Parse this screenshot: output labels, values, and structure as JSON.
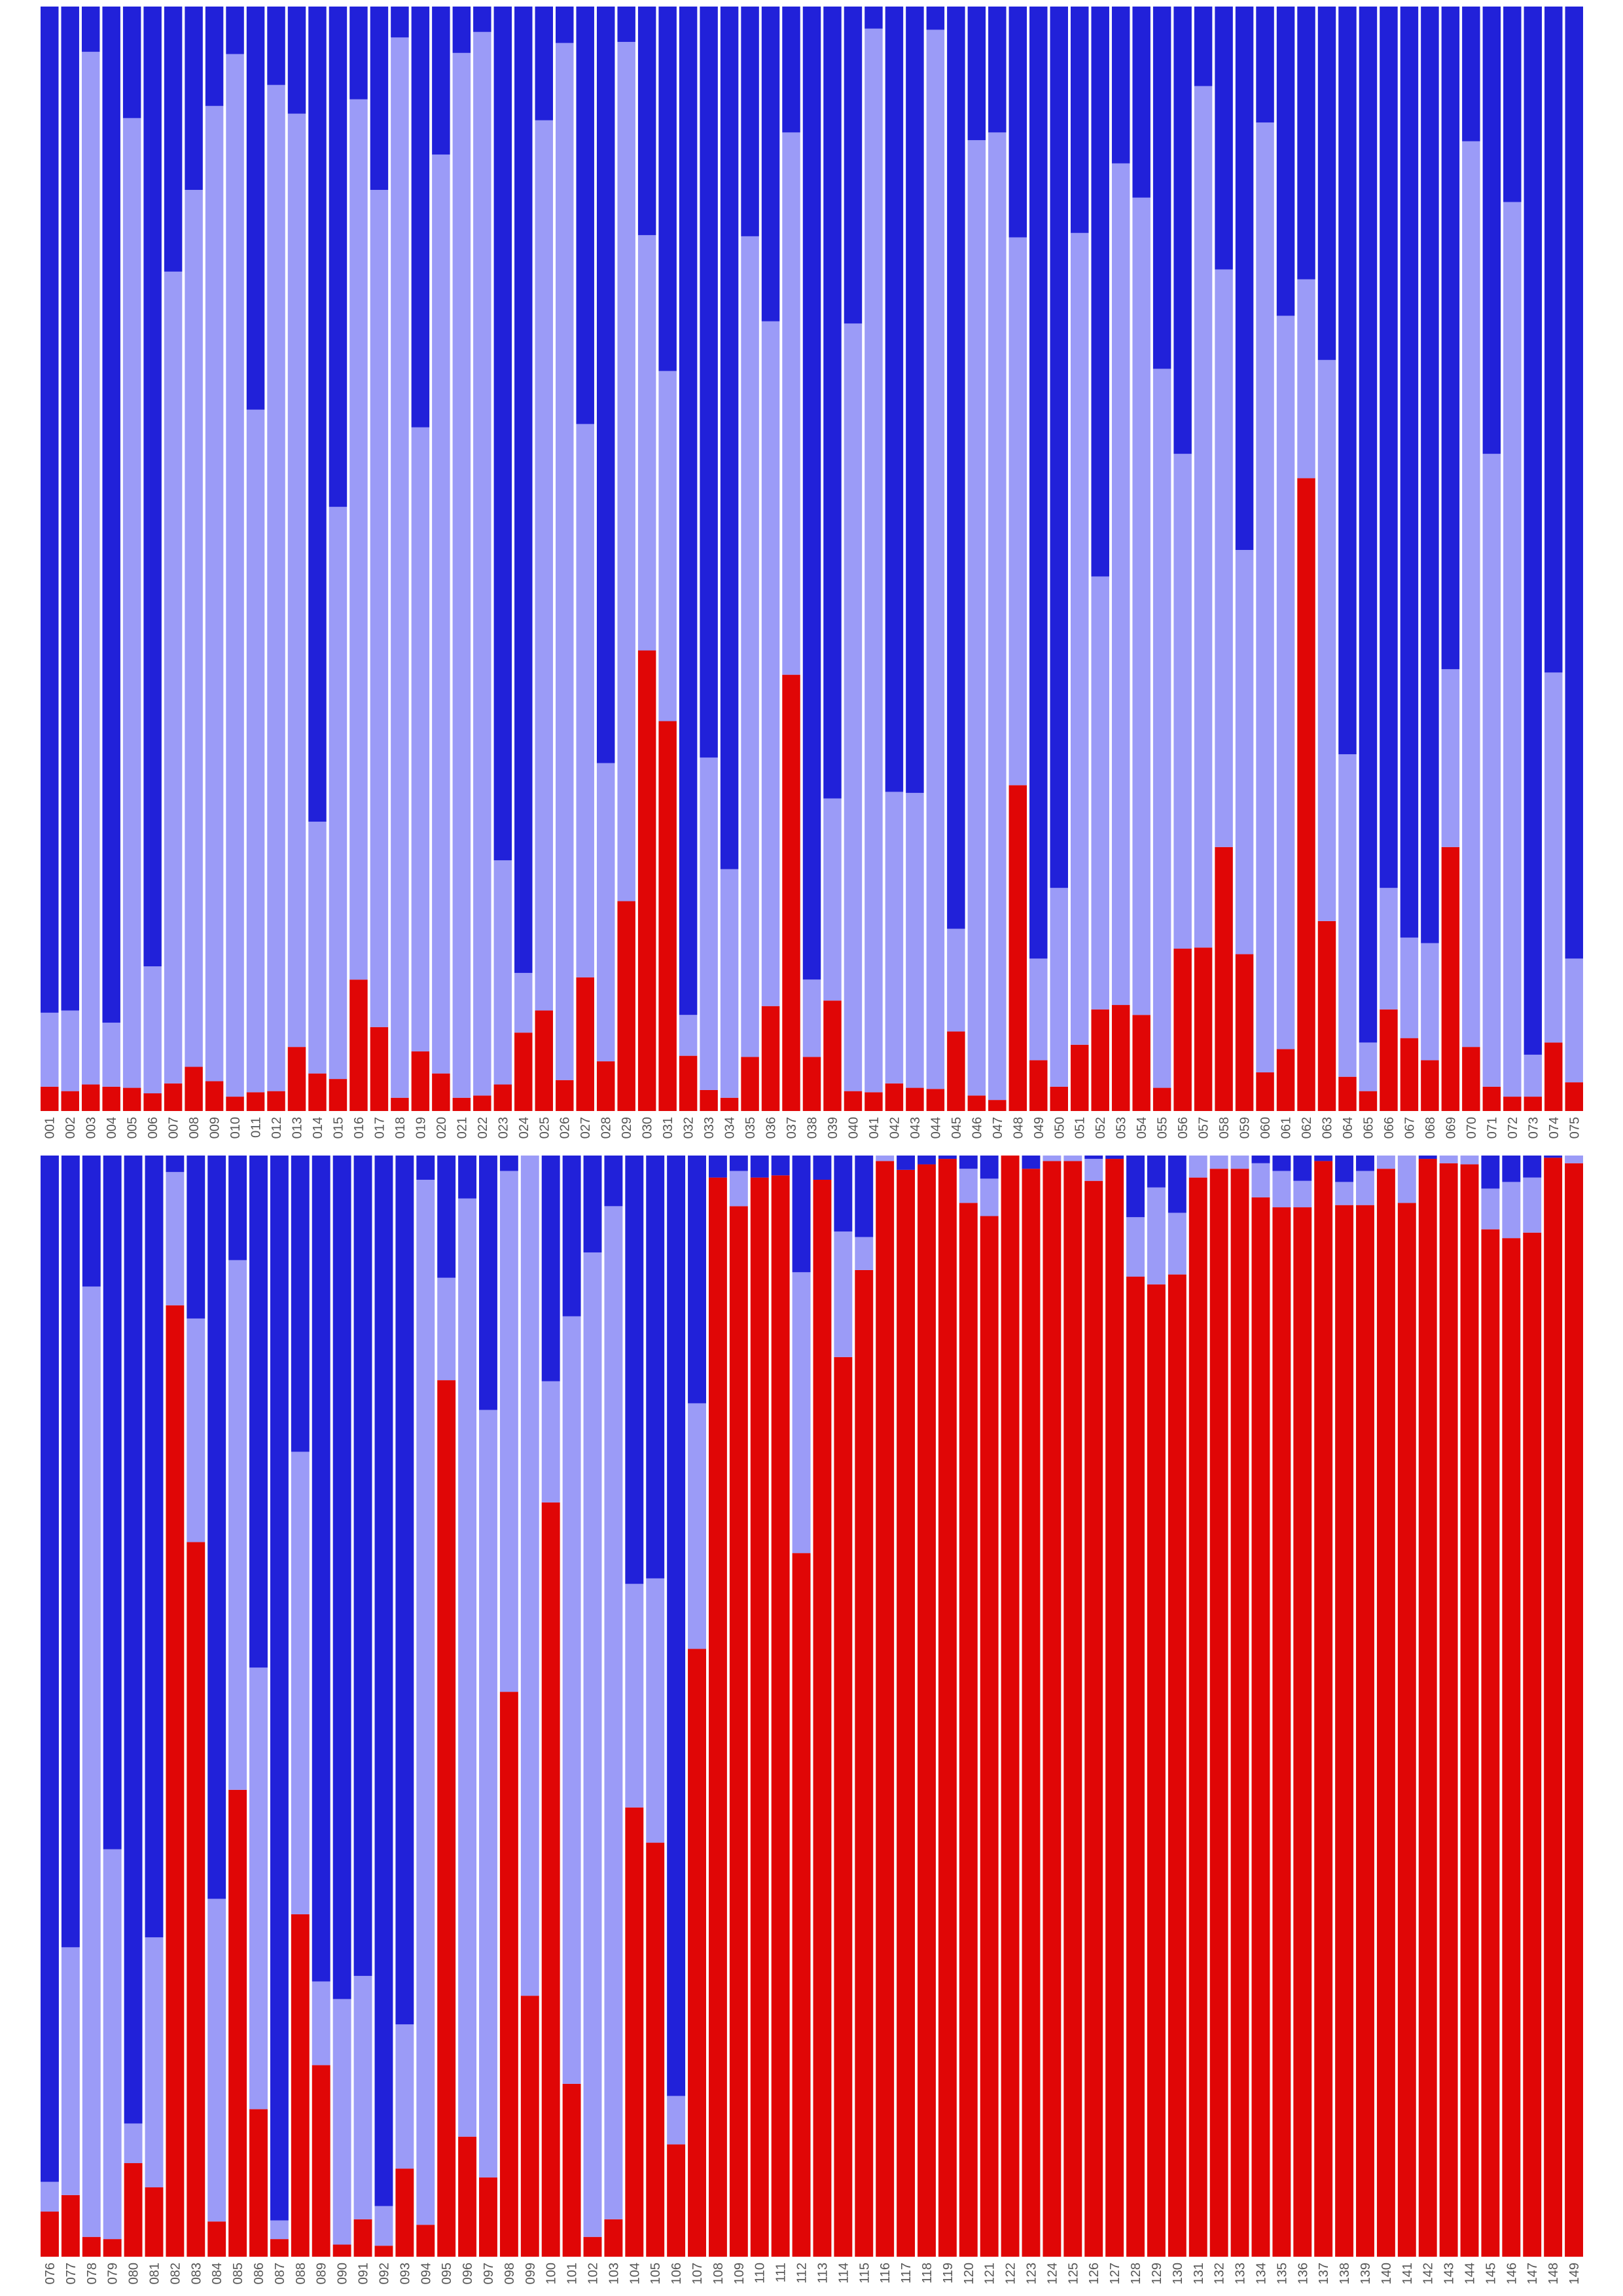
{
  "chart_data": [
    {
      "type": "bar",
      "stacked": true,
      "normalized": true,
      "ylim": [
        0,
        1
      ],
      "grid": false,
      "legend": "none",
      "series_colors": [
        "#e00606",
        "#9b9bf7",
        "#2121d9"
      ],
      "categories": [
        "001",
        "002",
        "003",
        "004",
        "005",
        "006",
        "007",
        "008",
        "009",
        "010",
        "011",
        "012",
        "013",
        "014",
        "015",
        "016",
        "017",
        "018",
        "019",
        "020",
        "021",
        "022",
        "023",
        "024",
        "025",
        "026",
        "027",
        "028",
        "029",
        "030",
        "031",
        "032",
        "033",
        "034",
        "035",
        "036",
        "037",
        "038",
        "039",
        "040",
        "041",
        "042",
        "043",
        "044",
        "045",
        "046",
        "047",
        "048",
        "049",
        "050",
        "051",
        "052",
        "053",
        "054",
        "055",
        "056",
        "057",
        "058",
        "059",
        "060",
        "061",
        "062",
        "063",
        "064",
        "065",
        "066",
        "067",
        "068",
        "069",
        "070",
        "071",
        "072",
        "073",
        "074",
        "075"
      ],
      "series": [
        {
          "values": [
            0.022,
            0.018,
            0.024,
            0.022,
            0.021,
            0.016,
            0.025,
            0.04,
            0.027,
            0.013,
            0.017,
            0.018,
            0.058,
            0.034,
            0.029,
            0.119,
            0.076,
            0.012,
            0.054,
            0.034,
            0.012,
            0.014,
            0.024,
            0.071,
            0.091,
            0.028,
            0.121,
            0.045,
            0.19,
            0.417,
            0.353,
            0.05,
            0.019,
            0.012,
            0.049,
            0.095,
            0.395,
            0.049,
            0.1,
            0.018,
            0.017,
            0.025,
            0.021,
            0.02,
            0.072,
            0.014,
            0.01,
            0.295,
            0.046,
            0.022,
            0.06,
            0.092,
            0.096,
            0.087,
            0.021,
            0.147,
            0.148,
            0.239,
            0.142,
            0.035,
            0.056,
            0.573,
            0.172,
            0.031,
            0.018,
            0.092,
            0.066,
            0.046,
            0.239,
            0.058,
            0.022,
            0.013,
            0.013,
            0.062,
            0.026
          ]
        },
        {
          "values": [
            0.067,
            0.073,
            0.935,
            0.058,
            0.878,
            0.115,
            0.735,
            0.794,
            0.883,
            0.944,
            0.618,
            0.911,
            0.845,
            0.228,
            0.518,
            0.797,
            0.758,
            0.96,
            0.565,
            0.832,
            0.946,
            0.963,
            0.203,
            0.054,
            0.806,
            0.939,
            0.501,
            0.27,
            0.778,
            0.376,
            0.317,
            0.037,
            0.301,
            0.207,
            0.743,
            0.62,
            0.491,
            0.07,
            0.183,
            0.695,
            0.963,
            0.264,
            0.267,
            0.959,
            0.093,
            0.865,
            0.876,
            0.496,
            0.092,
            0.18,
            0.735,
            0.392,
            0.762,
            0.74,
            0.651,
            0.448,
            0.78,
            0.523,
            0.366,
            0.86,
            0.664,
            0.18,
            0.508,
            0.292,
            0.044,
            0.11,
            0.091,
            0.106,
            0.161,
            0.82,
            0.573,
            0.81,
            0.038,
            0.335,
            0.112
          ]
        },
        {
          "values": [
            0.911,
            0.909,
            0.041,
            0.92,
            0.101,
            0.869,
            0.24,
            0.166,
            0.09,
            0.043,
            0.365,
            0.071,
            0.097,
            0.738,
            0.453,
            0.084,
            0.166,
            0.028,
            0.381,
            0.134,
            0.042,
            0.023,
            0.773,
            0.875,
            0.103,
            0.033,
            0.378,
            0.685,
            0.032,
            0.207,
            0.33,
            0.913,
            0.68,
            0.781,
            0.208,
            0.285,
            0.114,
            0.881,
            0.717,
            0.287,
            0.02,
            0.711,
            0.712,
            0.021,
            0.835,
            0.121,
            0.114,
            0.209,
            0.862,
            0.798,
            0.205,
            0.516,
            0.142,
            0.173,
            0.328,
            0.405,
            0.072,
            0.238,
            0.492,
            0.105,
            0.28,
            0.247,
            0.32,
            0.677,
            0.938,
            0.798,
            0.843,
            0.848,
            0.6,
            0.122,
            0.405,
            0.177,
            0.949,
            0.603,
            0.862
          ]
        }
      ]
    },
    {
      "type": "bar",
      "stacked": true,
      "normalized": true,
      "ylim": [
        0,
        1
      ],
      "grid": false,
      "legend": "none",
      "series_colors": [
        "#e00606",
        "#9b9bf7",
        "#2121d9"
      ],
      "categories": [
        "076",
        "077",
        "078",
        "079",
        "080",
        "081",
        "082",
        "083",
        "084",
        "085",
        "086",
        "087",
        "088",
        "089",
        "090",
        "091",
        "092",
        "093",
        "094",
        "095",
        "096",
        "097",
        "098",
        "099",
        "100",
        "101",
        "102",
        "103",
        "104",
        "105",
        "106",
        "107",
        "108",
        "109",
        "110",
        "111",
        "112",
        "113",
        "114",
        "115",
        "116",
        "117",
        "118",
        "119",
        "120",
        "121",
        "122",
        "123",
        "124",
        "125",
        "126",
        "127",
        "128",
        "129",
        "130",
        "131",
        "132",
        "133",
        "134",
        "135",
        "136",
        "137",
        "138",
        "139",
        "140",
        "141",
        "142",
        "143",
        "144",
        "145",
        "146",
        "147",
        "148",
        "149"
      ],
      "series": [
        {
          "values": [
            0.041,
            0.056,
            0.018,
            0.016,
            0.085,
            0.063,
            0.864,
            0.649,
            0.032,
            0.424,
            0.134,
            0.016,
            0.311,
            0.174,
            0.011,
            0.034,
            0.01,
            0.08,
            0.029,
            0.796,
            0.109,
            0.072,
            0.513,
            0.237,
            0.685,
            0.157,
            0.018,
            0.034,
            0.408,
            0.376,
            0.102,
            0.552,
            0.98,
            0.954,
            0.98,
            0.982,
            0.639,
            0.978,
            0.817,
            0.896,
            0.995,
            0.987,
            0.992,
            0.997,
            0.957,
            0.945,
            1.0,
            0.988,
            0.995,
            0.995,
            0.977,
            0.997,
            0.89,
            0.883,
            0.892,
            0.98,
            0.988,
            0.988,
            0.962,
            0.953,
            0.953,
            0.995,
            0.955,
            0.955,
            0.988,
            0.957,
            0.997,
            0.993,
            0.992,
            0.933,
            0.925,
            0.93,
            0.998,
            0.993
          ]
        },
        {
          "values": [
            0.027,
            0.225,
            0.863,
            0.354,
            0.036,
            0.227,
            0.121,
            0.203,
            0.293,
            0.481,
            0.401,
            0.017,
            0.42,
            0.076,
            0.223,
            0.221,
            0.036,
            0.131,
            0.949,
            0.093,
            0.852,
            0.697,
            0.473,
            0.769,
            0.11,
            0.697,
            0.894,
            0.92,
            0.203,
            0.24,
            0.044,
            0.223,
            0.0,
            0.032,
            0.0,
            0.0,
            0.255,
            0.0,
            0.114,
            0.03,
            0.015,
            0.0,
            0.0,
            0.0,
            0.031,
            0.034,
            0.0,
            0.0,
            0.018,
            0.017,
            0.02,
            0.0,
            0.054,
            0.088,
            0.056,
            0.025,
            0.013,
            0.02,
            0.031,
            0.033,
            0.024,
            0.0,
            0.021,
            0.031,
            0.026,
            0.044,
            0.0,
            0.012,
            0.012,
            0.037,
            0.051,
            0.05,
            0.0,
            0.015
          ]
        },
        {
          "values": [
            0.932,
            0.719,
            0.119,
            0.63,
            0.879,
            0.71,
            0.015,
            0.148,
            0.675,
            0.095,
            0.465,
            0.967,
            0.269,
            0.75,
            0.766,
            0.745,
            0.954,
            0.789,
            0.022,
            0.111,
            0.039,
            0.231,
            0.014,
            0.006,
            0.205,
            0.146,
            0.088,
            0.046,
            0.389,
            0.384,
            0.854,
            0.225,
            0.02,
            0.014,
            0.02,
            0.018,
            0.106,
            0.022,
            0.069,
            0.074,
            0.008,
            0.013,
            0.008,
            0.003,
            0.012,
            0.021,
            0.0,
            0.012,
            0.0,
            0.0,
            0.003,
            0.003,
            0.056,
            0.029,
            0.052,
            0.0,
            0.0,
            0.0,
            0.007,
            0.014,
            0.023,
            0.005,
            0.024,
            0.014,
            0.0,
            0.0,
            0.003,
            0.0,
            0.0,
            0.03,
            0.024,
            0.02,
            0.002,
            0.0
          ]
        }
      ]
    }
  ]
}
